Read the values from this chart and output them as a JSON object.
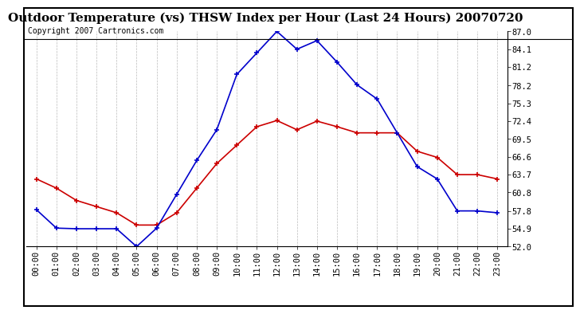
{
  "title": "Outdoor Temperature (vs) THSW Index per Hour (Last 24 Hours) 20070720",
  "copyright": "Copyright 2007 Cartronics.com",
  "hours": [
    "00:00",
    "01:00",
    "02:00",
    "03:00",
    "04:00",
    "05:00",
    "06:00",
    "07:00",
    "08:00",
    "09:00",
    "10:00",
    "11:00",
    "12:00",
    "13:00",
    "14:00",
    "15:00",
    "16:00",
    "17:00",
    "18:00",
    "19:00",
    "20:00",
    "21:00",
    "22:00",
    "23:00"
  ],
  "temp_red": [
    63.0,
    61.5,
    59.5,
    58.5,
    57.5,
    55.5,
    55.5,
    57.5,
    61.5,
    65.5,
    68.5,
    71.5,
    72.5,
    71.0,
    72.4,
    71.5,
    70.5,
    70.5,
    70.5,
    67.5,
    66.5,
    63.7,
    63.7,
    63.0
  ],
  "thsw_blue": [
    58.0,
    55.0,
    54.9,
    54.9,
    54.9,
    52.0,
    55.0,
    60.5,
    66.0,
    71.0,
    80.0,
    83.5,
    87.0,
    84.1,
    85.5,
    82.0,
    78.3,
    76.0,
    70.5,
    65.0,
    63.0,
    57.8,
    57.8,
    57.5
  ],
  "yticks": [
    52.0,
    54.9,
    57.8,
    60.8,
    63.7,
    66.6,
    69.5,
    72.4,
    75.3,
    78.2,
    81.2,
    84.1,
    87.0
  ],
  "ymin": 52.0,
  "ymax": 87.0,
  "temp_color": "#cc0000",
  "thsw_color": "#0000cc",
  "bg_color": "#ffffff",
  "grid_color": "#aaaaaa",
  "title_fontsize": 11,
  "copyright_fontsize": 7,
  "tick_fontsize": 7.5
}
